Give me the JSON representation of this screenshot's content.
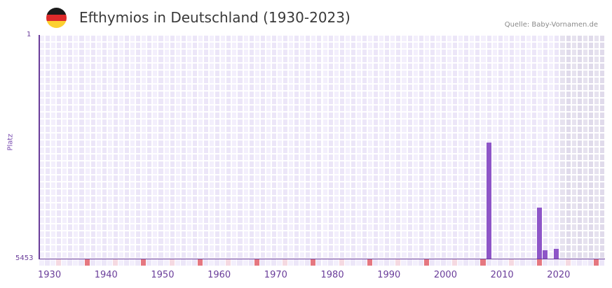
{
  "header": {
    "title": "Efthymios in Deutschland (1930-2023)",
    "source": "Quelle: Baby-Vornamen.de",
    "flag_icon": "germany-flag-icon",
    "flag_colors": [
      "#1a1a1a",
      "#dd2a2a",
      "#fcd030"
    ]
  },
  "axis": {
    "y_title": "Platz",
    "y_top_label": "1",
    "y_bottom_label": "5453",
    "x_ticks": [
      "1930",
      "1940",
      "1950",
      "1960",
      "1970",
      "1980",
      "1990",
      "2000",
      "2010",
      "2020"
    ]
  },
  "colors": {
    "bar": "#8e56c8",
    "axis": "#6a3d9a",
    "grid_a": "#f3effc",
    "grid_b": "#ece6f8",
    "shade_a": "#e6e2ef",
    "shade_b": "#e0dbeb",
    "decade_marker": "#e57780",
    "half_decade_marker": "#f5d9e1"
  },
  "chart_data": {
    "type": "bar",
    "title": "Efthymios in Deutschland (1930-2023)",
    "xlabel": "",
    "ylabel": "Platz",
    "y_inverted": true,
    "ylim": [
      5453,
      1
    ],
    "x_range": [
      1930,
      2029
    ],
    "shaded_region_from_year": 2022,
    "grid": true,
    "legend": "none",
    "x": [
      2009,
      2018,
      2019,
      2021
    ],
    "values": [
      2625,
      4209,
      5249,
      5214
    ],
    "note": "Values are rank positions (lower = more popular), estimated from bar heights; years without bars have no ranking."
  }
}
